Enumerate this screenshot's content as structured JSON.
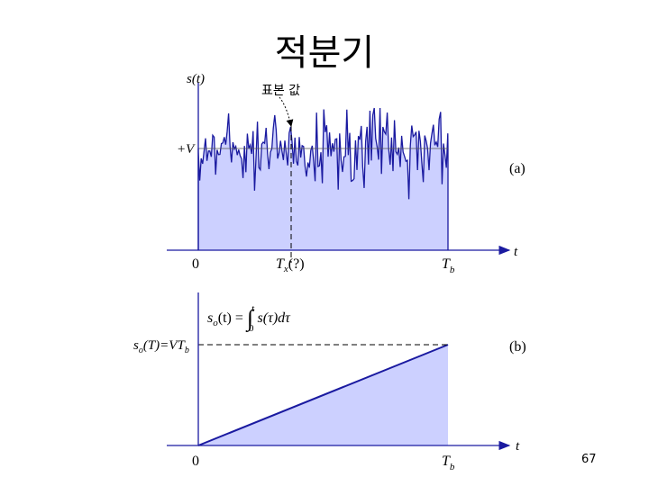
{
  "title": "적분기",
  "slide_number": "67",
  "panel_a": {
    "y_label": "s(t)",
    "annotation": "표본 값",
    "level_label": "+V",
    "tag": "(a)",
    "x_axis_label": "t",
    "origin_label": "0",
    "sample_time": {
      "symbol": "T",
      "subscript": "x",
      "suffix": "(?)"
    },
    "bit_time": {
      "symbol": "T",
      "subscript": "b"
    }
  },
  "panel_b": {
    "formula": {
      "lhs": "s",
      "lhs_sub": "o",
      "lhs_arg": "(t) = ",
      "integral": "∫",
      "upper": "t",
      "lower": "0",
      "integrand": "s(τ)dτ"
    },
    "level_label": {
      "symbol": "s",
      "subscript": "o",
      "middle": "(T)=VT",
      "subscript2": "b"
    },
    "tag": "(b)",
    "x_axis_label": "t",
    "origin_label": "0",
    "bit_time": {
      "symbol": "T",
      "subscript": "b"
    }
  }
}
